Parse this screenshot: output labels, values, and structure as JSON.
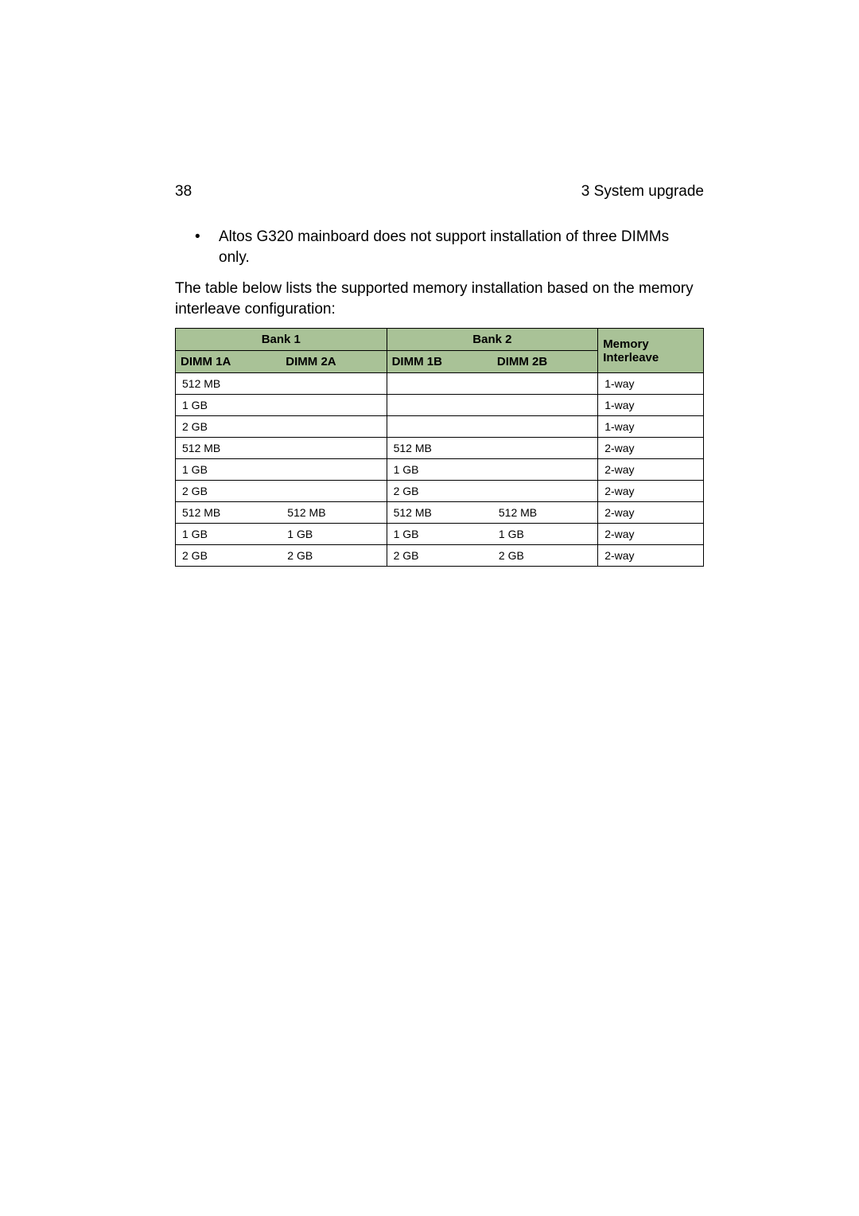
{
  "page": {
    "number": "38",
    "section": "3 System upgrade"
  },
  "bullet": {
    "mark": "•",
    "text": "Altos G320 mainboard does not support installation of three DIMMs only."
  },
  "intro": "The table below lists the supported memory installation based on the memory interleave configuration:",
  "table": {
    "header_bg": "#a9c297",
    "text_color": "#000000",
    "border_color": "#000000",
    "font_size_header": 15,
    "font_size_body": 14,
    "bank1_label": "Bank 1",
    "bank2_label": "Bank 2",
    "interleave_label": "Memory Interleave",
    "sub_headers": [
      "DIMM 1A",
      "DIMM 2A",
      "DIMM 1B",
      "DIMM 2B"
    ],
    "rows": [
      {
        "dimm1a": "512 MB",
        "dimm2a": "",
        "dimm1b": "",
        "dimm2b": "",
        "interleave": "1-way"
      },
      {
        "dimm1a": "1 GB",
        "dimm2a": "",
        "dimm1b": "",
        "dimm2b": "",
        "interleave": "1-way"
      },
      {
        "dimm1a": "2 GB",
        "dimm2a": "",
        "dimm1b": "",
        "dimm2b": "",
        "interleave": "1-way"
      },
      {
        "dimm1a": "512 MB",
        "dimm2a": "",
        "dimm1b": "512 MB",
        "dimm2b": "",
        "interleave": "2-way"
      },
      {
        "dimm1a": "1 GB",
        "dimm2a": "",
        "dimm1b": "1 GB",
        "dimm2b": "",
        "interleave": "2-way"
      },
      {
        "dimm1a": "2 GB",
        "dimm2a": "",
        "dimm1b": "2 GB",
        "dimm2b": "",
        "interleave": "2-way"
      },
      {
        "dimm1a": "512 MB",
        "dimm2a": "512 MB",
        "dimm1b": "512 MB",
        "dimm2b": "512 MB",
        "interleave": "2-way"
      },
      {
        "dimm1a": "1 GB",
        "dimm2a": "1 GB",
        "dimm1b": "1 GB",
        "dimm2b": "1 GB",
        "interleave": "2-way"
      },
      {
        "dimm1a": "2 GB",
        "dimm2a": "2 GB",
        "dimm1b": "2 GB",
        "dimm2b": "2 GB",
        "interleave": "2-way"
      }
    ]
  }
}
